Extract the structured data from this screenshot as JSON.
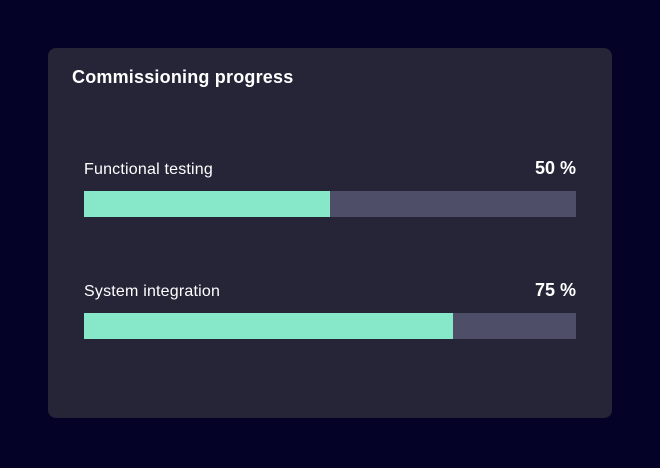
{
  "colors": {
    "page-bg": "#040226",
    "card-bg": "#262437",
    "track": "#4F4E69",
    "fill": "#87E8C9",
    "text": "#FFFFFF"
  },
  "card": {
    "title": "Commissioning progress",
    "bars": [
      {
        "label": "Functional testing",
        "value_label": "50 %",
        "percent": 50,
        "fill_width": "50%"
      },
      {
        "label": "System integration",
        "value_label": "75 %",
        "percent": 75,
        "fill_width": "75%"
      }
    ]
  },
  "chart_data": {
    "type": "bar",
    "title": "Commissioning progress",
    "categories": [
      "Functional testing",
      "System integration"
    ],
    "values": [
      50,
      75
    ],
    "unit": "%",
    "xlim": [
      0,
      100
    ],
    "orientation": "horizontal",
    "grid": false,
    "legend": false
  }
}
